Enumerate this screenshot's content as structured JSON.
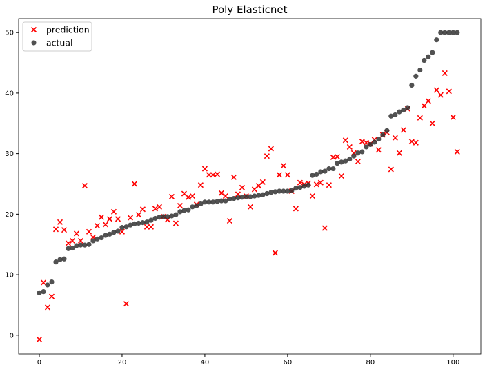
{
  "chart_data": {
    "type": "scatter",
    "title": "Poly Elasticnet",
    "x": [
      0,
      1,
      2,
      3,
      4,
      5,
      6,
      7,
      8,
      9,
      10,
      11,
      12,
      13,
      14,
      15,
      16,
      17,
      18,
      19,
      20,
      21,
      22,
      23,
      24,
      25,
      26,
      27,
      28,
      29,
      30,
      31,
      32,
      33,
      34,
      35,
      36,
      37,
      38,
      39,
      40,
      41,
      42,
      43,
      44,
      45,
      46,
      47,
      48,
      49,
      50,
      51,
      52,
      53,
      54,
      55,
      56,
      57,
      58,
      59,
      60,
      61,
      62,
      63,
      64,
      65,
      66,
      67,
      68,
      69,
      70,
      71,
      72,
      73,
      74,
      75,
      76,
      77,
      78,
      79,
      80,
      81,
      82,
      83,
      84,
      85,
      86,
      87,
      88,
      89,
      90,
      91,
      92,
      93,
      94,
      95,
      96,
      97,
      98,
      99,
      100,
      101
    ],
    "series": [
      {
        "name": "prediction",
        "color": "#ff0000",
        "marker": "x",
        "values": [
          -0.7,
          8.7,
          4.6,
          6.4,
          17.5,
          18.7,
          17.4,
          15.2,
          15.6,
          16.8,
          15.6,
          24.7,
          17.1,
          16.2,
          18.1,
          19.5,
          18.3,
          19.2,
          20.4,
          19.2,
          17.1,
          5.2,
          19.4,
          25.0,
          19.9,
          20.8,
          17.9,
          17.9,
          20.9,
          21.2,
          19.6,
          19.1,
          22.9,
          18.5,
          21.4,
          23.4,
          22.8,
          23.0,
          21.6,
          24.8,
          27.5,
          26.5,
          26.5,
          26.6,
          23.5,
          23.0,
          18.9,
          26.1,
          23.3,
          24.4,
          23.0,
          21.2,
          24.1,
          24.7,
          25.3,
          29.6,
          30.8,
          13.6,
          26.5,
          28.0,
          26.5,
          23.8,
          20.9,
          25.2,
          24.9,
          25.1,
          23.0,
          24.9,
          25.2,
          17.7,
          24.8,
          29.4,
          29.5,
          26.3,
          32.2,
          31.1,
          30.1,
          28.7,
          32.0,
          31.8,
          31.6,
          32.3,
          30.6,
          33.1,
          33.5,
          27.4,
          32.6,
          30.1,
          33.9,
          37.4,
          32.0,
          31.8,
          35.9,
          37.9,
          38.7,
          35.0,
          40.5,
          39.7,
          43.3,
          40.3,
          36.0,
          30.3
        ]
      },
      {
        "name": "actual",
        "color": "#333333",
        "marker": "o",
        "values": [
          7.0,
          7.2,
          8.3,
          8.8,
          12.1,
          12.5,
          12.6,
          14.3,
          14.4,
          14.8,
          14.9,
          14.9,
          15.0,
          15.6,
          15.9,
          16.1,
          16.5,
          16.7,
          17.0,
          17.2,
          17.8,
          17.9,
          18.2,
          18.4,
          18.5,
          18.6,
          18.7,
          19.0,
          19.3,
          19.5,
          19.6,
          19.6,
          19.7,
          19.9,
          20.4,
          20.6,
          20.7,
          21.2,
          21.4,
          21.7,
          22.0,
          22.0,
          22.0,
          22.1,
          22.2,
          22.2,
          22.5,
          22.6,
          22.7,
          22.8,
          22.9,
          22.9,
          23.0,
          23.1,
          23.2,
          23.4,
          23.6,
          23.7,
          23.8,
          23.8,
          23.8,
          23.9,
          24.3,
          24.4,
          24.6,
          24.8,
          26.4,
          26.6,
          27.0,
          27.1,
          27.5,
          27.5,
          28.4,
          28.6,
          28.8,
          29.1,
          29.6,
          30.1,
          30.3,
          31.1,
          31.5,
          31.9,
          32.4,
          33.1,
          33.8,
          36.2,
          36.4,
          36.9,
          37.2,
          37.6,
          41.3,
          42.8,
          43.8,
          45.4,
          46.0,
          46.7,
          48.8,
          50,
          50,
          50,
          50,
          50
        ]
      }
    ],
    "xlim": [
      -5,
      106.7
    ],
    "ylim": [
      -3.1,
      52.3
    ],
    "xticks": [
      0,
      20,
      40,
      60,
      80,
      100
    ],
    "yticks": [
      0,
      10,
      20,
      30,
      40,
      50
    ],
    "legend": "upper left"
  }
}
